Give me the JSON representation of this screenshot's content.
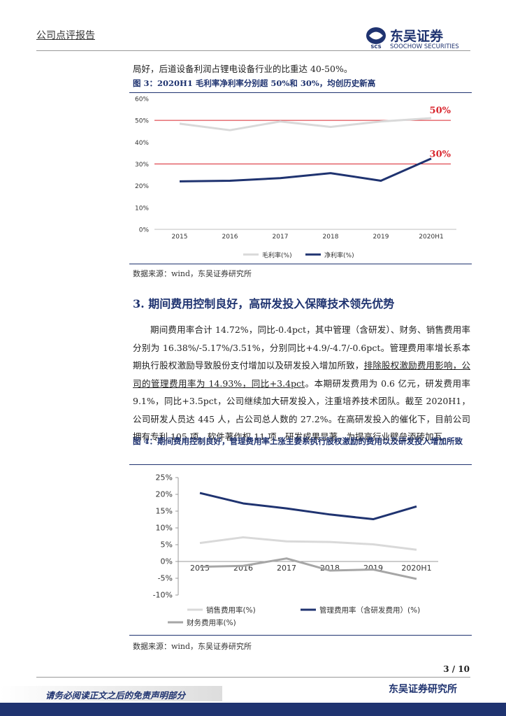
{
  "header": {
    "left": "公司点评报告",
    "logo_cn": "东吴证券",
    "logo_mark": "SCS",
    "logo_en": "SOOCHOW SECURITIES"
  },
  "intro_text": "局好，后道设备利润占锂电设备行业的比重达 40-50%。",
  "figure3": {
    "caption": "图 3：2020H1 毛利率净利率分别超 50%和 30%，均创历史新高",
    "source": "数据来源：wind，东吴证券研究所"
  },
  "section": {
    "heading": "3.  期间费用控制良好，高研发投入保障技术领先优势",
    "paragraph": [
      "期间费用率合计 14.72%，同比-0.4pct，其中管理（含研发）、财务、销售费用率分别为 16.38%/-5.17%/3.51%，分别同比+4.9/-4.7/-0.6pct。管理费用率增长系本期执行股权激励导致股份支付增加以及研发投入增加所致，",
      "排除股权激励费用影响，公司的管理费用率为 14.93%，同比+3.4pct",
      "。本期研发费用为 0.6 亿元，研发费用率 9.1%，同比+3.5pct，公司继续加大研发投入，注重培养技术团队。截至 2020H1，公司研发人员达 445 人，占公司总人数的 27.2%。在高研发投入的催化下，目前公司拥有专利 105 项，软件著作权 11 项，研发成果显著，为提高行业壁垒添砖加瓦。"
    ]
  },
  "figure4": {
    "caption": "图 4：期间费用控制良好，管理费用率上涨主要系执行股权激励的费用以及研发投入增加所致",
    "source": "数据来源：wind，东吴证券研究所"
  },
  "footer": {
    "page": "3 / 10",
    "disclaimer": "请务必阅读正文之后的免责声明部分",
    "org": "东吴证券研究所"
  },
  "chart_data": [
    {
      "type": "line",
      "categories": [
        "2015",
        "2016",
        "2017",
        "2018",
        "2019",
        "2020H1"
      ],
      "series": [
        {
          "name": "毛利率(%)",
          "color": "#d9d9d9",
          "values": [
            48.5,
            45.5,
            49.5,
            47,
            49.5,
            51
          ]
        },
        {
          "name": "净利率(%)",
          "color": "#1f3370",
          "values": [
            22,
            22.3,
            23.5,
            25.8,
            22.3,
            32.5
          ]
        }
      ],
      "ylim": [
        0,
        60
      ],
      "yticks": [
        {
          "value": 0,
          "label": "0%"
        },
        {
          "value": 10,
          "label": "10%"
        },
        {
          "value": 20,
          "label": "20%"
        },
        {
          "value": 30,
          "label": "30%"
        },
        {
          "value": 40,
          "label": "40%"
        },
        {
          "value": 50,
          "label": "50%"
        },
        {
          "value": 60,
          "label": "60%"
        }
      ],
      "reference_lines": [
        {
          "value": 50,
          "label": "50%",
          "color": "#d9262e"
        },
        {
          "value": 30,
          "label": "30%",
          "color": "#d9262e"
        }
      ],
      "grid": false
    },
    {
      "type": "line",
      "categories": [
        "2015",
        "2016",
        "2017",
        "2018",
        "2019",
        "2020H1"
      ],
      "series": [
        {
          "name": "销售费用率(%)",
          "color": "#d9d9d9",
          "values": [
            5.5,
            7.2,
            6,
            5.8,
            5.1,
            3.5
          ]
        },
        {
          "name": "管理费用率（含研发费用）(%)",
          "color": "#1f3370",
          "values": [
            20.4,
            17.3,
            15.8,
            14,
            12.6,
            16.4
          ]
        },
        {
          "name": "财务费用率(%)",
          "color": "#a6a6a6",
          "values": [
            -1.6,
            -1.3,
            0.9,
            -2.7,
            -2.4,
            -5.2
          ]
        }
      ],
      "ylim": [
        -10,
        25
      ],
      "yticks": [
        {
          "value": -10,
          "label": "-10%"
        },
        {
          "value": -5,
          "label": "-5%"
        },
        {
          "value": 0,
          "label": "0%"
        },
        {
          "value": 5,
          "label": "5%"
        },
        {
          "value": 10,
          "label": "10%"
        },
        {
          "value": 15,
          "label": "15%"
        },
        {
          "value": 20,
          "label": "20%"
        },
        {
          "value": 25,
          "label": "25%"
        }
      ],
      "grid": false
    }
  ]
}
